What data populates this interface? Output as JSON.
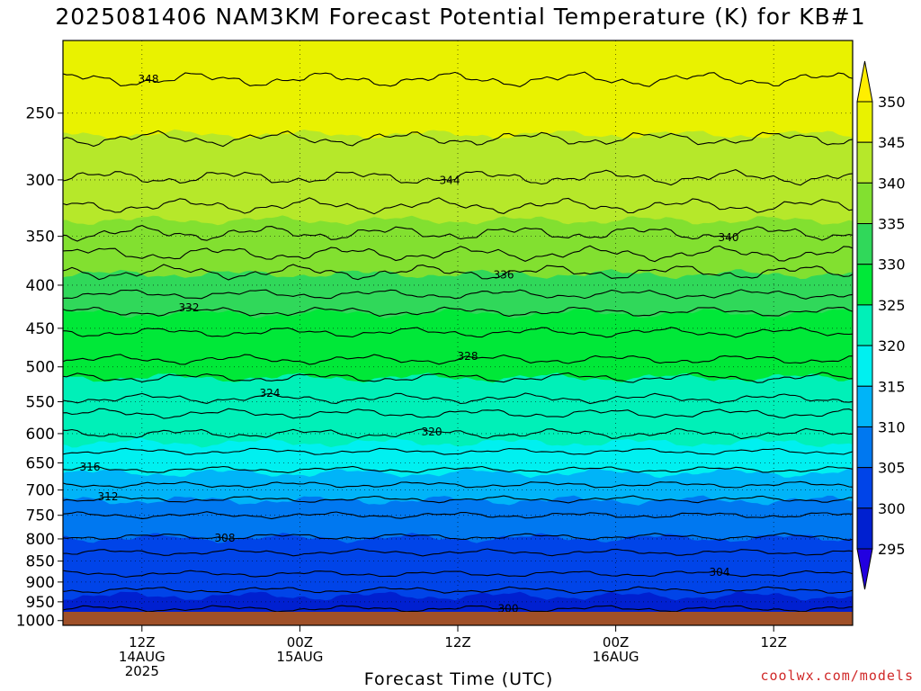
{
  "chart_data": {
    "type": "heatmap",
    "title": "2025081406 NAM3KM Forecast Potential Temperature (K) for KB#1",
    "xlabel": "Forecast Time (UTC)",
    "ylabel": "",
    "y_scale": "log-pressure",
    "y_ticks": [
      "250",
      "300",
      "350",
      "400",
      "450",
      "500",
      "550",
      "600",
      "650",
      "700",
      "750",
      "800",
      "850",
      "900",
      "950",
      "1000"
    ],
    "ylim": [
      1013,
      205
    ],
    "x_range_hours": [
      6,
      66
    ],
    "x_ticks": [
      {
        "hour": 12,
        "line1": "12Z",
        "line2": "14AUG",
        "line3": "2025"
      },
      {
        "hour": 24,
        "line1": "00Z",
        "line2": "15AUG",
        "line3": ""
      },
      {
        "hour": 36,
        "line1": "12Z",
        "line2": "",
        "line3": ""
      },
      {
        "hour": 48,
        "line1": "00Z",
        "line2": "16AUG",
        "line3": ""
      },
      {
        "hour": 60,
        "line1": "12Z",
        "line2": "",
        "line3": ""
      }
    ],
    "grid": "dotted",
    "levels": [
      {
        "theta": 350,
        "pressure": 196
      },
      {
        "theta": 345,
        "pressure": 265
      },
      {
        "theta": 340,
        "pressure": 335
      },
      {
        "theta": 335,
        "pressure": 388
      },
      {
        "theta": 330,
        "pressure": 432
      },
      {
        "theta": 325,
        "pressure": 515
      },
      {
        "theta": 320,
        "pressure": 615
      },
      {
        "theta": 315,
        "pressure": 668
      },
      {
        "theta": 310,
        "pressure": 720
      },
      {
        "theta": 305,
        "pressure": 798
      },
      {
        "theta": 300,
        "pressure": 935
      },
      {
        "theta": 295,
        "pressure": 1000
      }
    ],
    "contours": [
      {
        "theta": 348,
        "pressure": 228,
        "label": "348"
      },
      {
        "theta": 346,
        "pressure": 268,
        "label": ""
      },
      {
        "theta": 344,
        "pressure": 298,
        "label": "344"
      },
      {
        "theta": 342,
        "pressure": 322,
        "label": ""
      },
      {
        "theta": 340,
        "pressure": 347,
        "label": "340"
      },
      {
        "theta": 338,
        "pressure": 367,
        "label": ""
      },
      {
        "theta": 336,
        "pressure": 386,
        "label": "336"
      },
      {
        "theta": 334,
        "pressure": 410,
        "label": ""
      },
      {
        "theta": 332,
        "pressure": 430,
        "label": "332"
      },
      {
        "theta": 330,
        "pressure": 455,
        "label": ""
      },
      {
        "theta": 328,
        "pressure": 490,
        "label": "328"
      },
      {
        "theta": 326,
        "pressure": 515,
        "label": ""
      },
      {
        "theta": 324,
        "pressure": 545,
        "label": "324"
      },
      {
        "theta": 322,
        "pressure": 568,
        "label": ""
      },
      {
        "theta": 320,
        "pressure": 600,
        "label": "320"
      },
      {
        "theta": 318,
        "pressure": 630,
        "label": ""
      },
      {
        "theta": 316,
        "pressure": 662,
        "label": "316"
      },
      {
        "theta": 314,
        "pressure": 690,
        "label": ""
      },
      {
        "theta": 312,
        "pressure": 718,
        "label": "312"
      },
      {
        "theta": 310,
        "pressure": 750,
        "label": ""
      },
      {
        "theta": 308,
        "pressure": 795,
        "label": "308"
      },
      {
        "theta": 306,
        "pressure": 830,
        "label": ""
      },
      {
        "theta": 304,
        "pressure": 880,
        "label": "304"
      },
      {
        "theta": 302,
        "pressure": 920,
        "label": ""
      },
      {
        "theta": 300,
        "pressure": 968,
        "label": "300"
      }
    ],
    "colorbar": {
      "labels": [
        "350",
        "345",
        "340",
        "335",
        "330",
        "325",
        "320",
        "315",
        "310",
        "305",
        "300",
        "295"
      ],
      "colors": [
        "#ffee00",
        "#e9f200",
        "#b6e82a",
        "#82e030",
        "#30d85a",
        "#00e838",
        "#00f0b8",
        "#00f0f0",
        "#00b4f8",
        "#0078f0",
        "#0044e8",
        "#0020d0",
        "#2200e0"
      ]
    },
    "ground_color": "#a05028"
  },
  "credit": "coolwx.com/models"
}
